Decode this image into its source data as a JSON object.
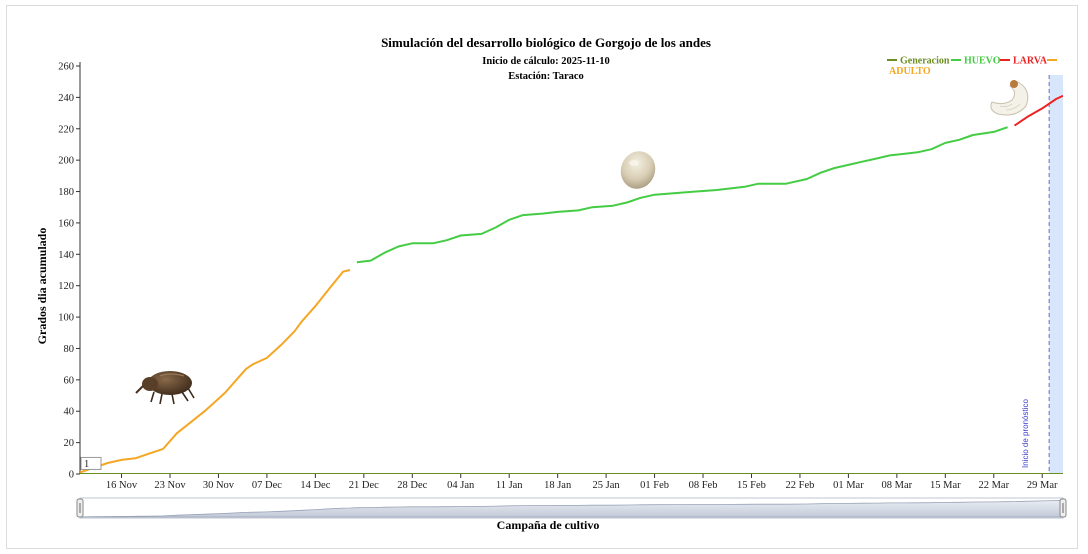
{
  "chart_data": {
    "type": "line",
    "title": "Simulación del desarrollo biológico de Gorgojo de los andes",
    "subtitle_lines": [
      "Inicio de cálculo: 2025-11-10",
      "Estación: Taraco"
    ],
    "xlabel": "Campaña de cultivo",
    "ylabel": "Grados dia acumulado",
    "ylim": [
      0,
      260
    ],
    "yticks": [
      0,
      20,
      40,
      60,
      80,
      100,
      120,
      140,
      160,
      180,
      200,
      220,
      240,
      260
    ],
    "xticks": [
      "16 Nov",
      "23 Nov",
      "30 Nov",
      "07 Dec",
      "14 Dec",
      "21 Dec",
      "28 Dec",
      "04 Jan",
      "11 Jan",
      "18 Jan",
      "25 Jan",
      "01 Feb",
      "08 Feb",
      "15 Feb",
      "22 Feb",
      "01 Mar",
      "08 Mar",
      "15 Mar",
      "22 Mar",
      "29 Mar"
    ],
    "xtick_dates": [
      "2025-11-16",
      "2025-11-23",
      "2025-11-30",
      "2025-12-07",
      "2025-12-14",
      "2025-12-21",
      "2025-12-28",
      "2026-01-04",
      "2026-01-11",
      "2026-01-18",
      "2026-01-25",
      "2026-02-01",
      "2026-02-08",
      "2026-02-15",
      "2026-02-22",
      "2026-03-01",
      "2026-03-08",
      "2026-03-15",
      "2026-03-22",
      "2026-03-29"
    ],
    "xlim": [
      "2025-11-10",
      "2026-04-01"
    ],
    "legend": {
      "placement": "top-right",
      "entries": [
        {
          "name": "Generacion",
          "color": "#6b8e23"
        },
        {
          "name": "HUEVO",
          "color": "#44cc44"
        },
        {
          "name": "LARVA",
          "color": "#ee2222"
        },
        {
          "name": "ADULTO",
          "color": "#f5a623"
        }
      ]
    },
    "series": [
      {
        "name": "ADULTO",
        "color": "#f5a623",
        "points": [
          [
            "2025-11-10",
            1
          ],
          [
            "2025-11-12",
            4
          ],
          [
            "2025-11-14",
            7
          ],
          [
            "2025-11-16",
            9
          ],
          [
            "2025-11-18",
            10
          ],
          [
            "2025-11-20",
            13
          ],
          [
            "2025-11-22",
            16
          ],
          [
            "2025-11-24",
            26
          ],
          [
            "2025-11-26",
            33
          ],
          [
            "2025-11-28",
            40
          ],
          [
            "2025-11-30",
            48
          ],
          [
            "2025-12-01",
            52
          ],
          [
            "2025-12-03",
            62
          ],
          [
            "2025-12-04",
            67
          ],
          [
            "2025-12-05",
            70
          ],
          [
            "2025-12-07",
            74
          ],
          [
            "2025-12-09",
            82
          ],
          [
            "2025-12-11",
            91
          ],
          [
            "2025-12-12",
            97
          ],
          [
            "2025-12-14",
            107
          ],
          [
            "2025-12-16",
            118
          ],
          [
            "2025-12-18",
            129
          ],
          [
            "2025-12-19",
            130
          ]
        ]
      },
      {
        "name": "HUEVO",
        "color": "#44cc44",
        "points": [
          [
            "2025-12-20",
            135
          ],
          [
            "2025-12-22",
            136
          ],
          [
            "2025-12-24",
            141
          ],
          [
            "2025-12-26",
            145
          ],
          [
            "2025-12-28",
            147
          ],
          [
            "2025-12-31",
            147
          ],
          [
            "2026-01-02",
            149
          ],
          [
            "2026-01-04",
            152
          ],
          [
            "2026-01-07",
            153
          ],
          [
            "2026-01-09",
            157
          ],
          [
            "2026-01-11",
            162
          ],
          [
            "2026-01-13",
            165
          ],
          [
            "2026-01-16",
            166
          ],
          [
            "2026-01-18",
            167
          ],
          [
            "2026-01-21",
            168
          ],
          [
            "2026-01-23",
            170
          ],
          [
            "2026-01-26",
            171
          ],
          [
            "2026-01-28",
            173
          ],
          [
            "2026-01-30",
            176
          ],
          [
            "2026-02-01",
            178
          ],
          [
            "2026-02-04",
            179
          ],
          [
            "2026-02-07",
            180
          ],
          [
            "2026-02-10",
            181
          ],
          [
            "2026-02-12",
            182
          ],
          [
            "2026-02-14",
            183
          ],
          [
            "2026-02-16",
            185
          ],
          [
            "2026-02-20",
            185
          ],
          [
            "2026-02-23",
            188
          ],
          [
            "2026-02-25",
            192
          ],
          [
            "2026-02-27",
            195
          ],
          [
            "2026-03-01",
            197
          ],
          [
            "2026-03-03",
            199
          ],
          [
            "2026-03-05",
            201
          ],
          [
            "2026-03-07",
            203
          ],
          [
            "2026-03-09",
            204
          ],
          [
            "2026-03-11",
            205
          ],
          [
            "2026-03-13",
            207
          ],
          [
            "2026-03-15",
            211
          ],
          [
            "2026-03-17",
            213
          ],
          [
            "2026-03-19",
            216
          ],
          [
            "2026-03-22",
            218
          ],
          [
            "2026-03-24",
            221
          ]
        ]
      },
      {
        "name": "LARVA",
        "color": "#ee2222",
        "points": [
          [
            "2026-03-25",
            222
          ],
          [
            "2026-03-27",
            228
          ],
          [
            "2026-03-29",
            233
          ],
          [
            "2026-03-31",
            239
          ],
          [
            "2026-04-01",
            241
          ]
        ]
      },
      {
        "name": "Generacion",
        "color": "#6b8e23",
        "points": [
          [
            "2025-11-10",
            0
          ],
          [
            "2026-04-01",
            0
          ]
        ]
      }
    ],
    "forecast": {
      "label": "Inicio de pronóstico",
      "start": "2026-03-30",
      "end": "2026-04-01"
    },
    "annotations": [
      {
        "text": "1",
        "x": "2025-11-10",
        "y": 1
      }
    ],
    "grid": false,
    "range_slider": true
  }
}
